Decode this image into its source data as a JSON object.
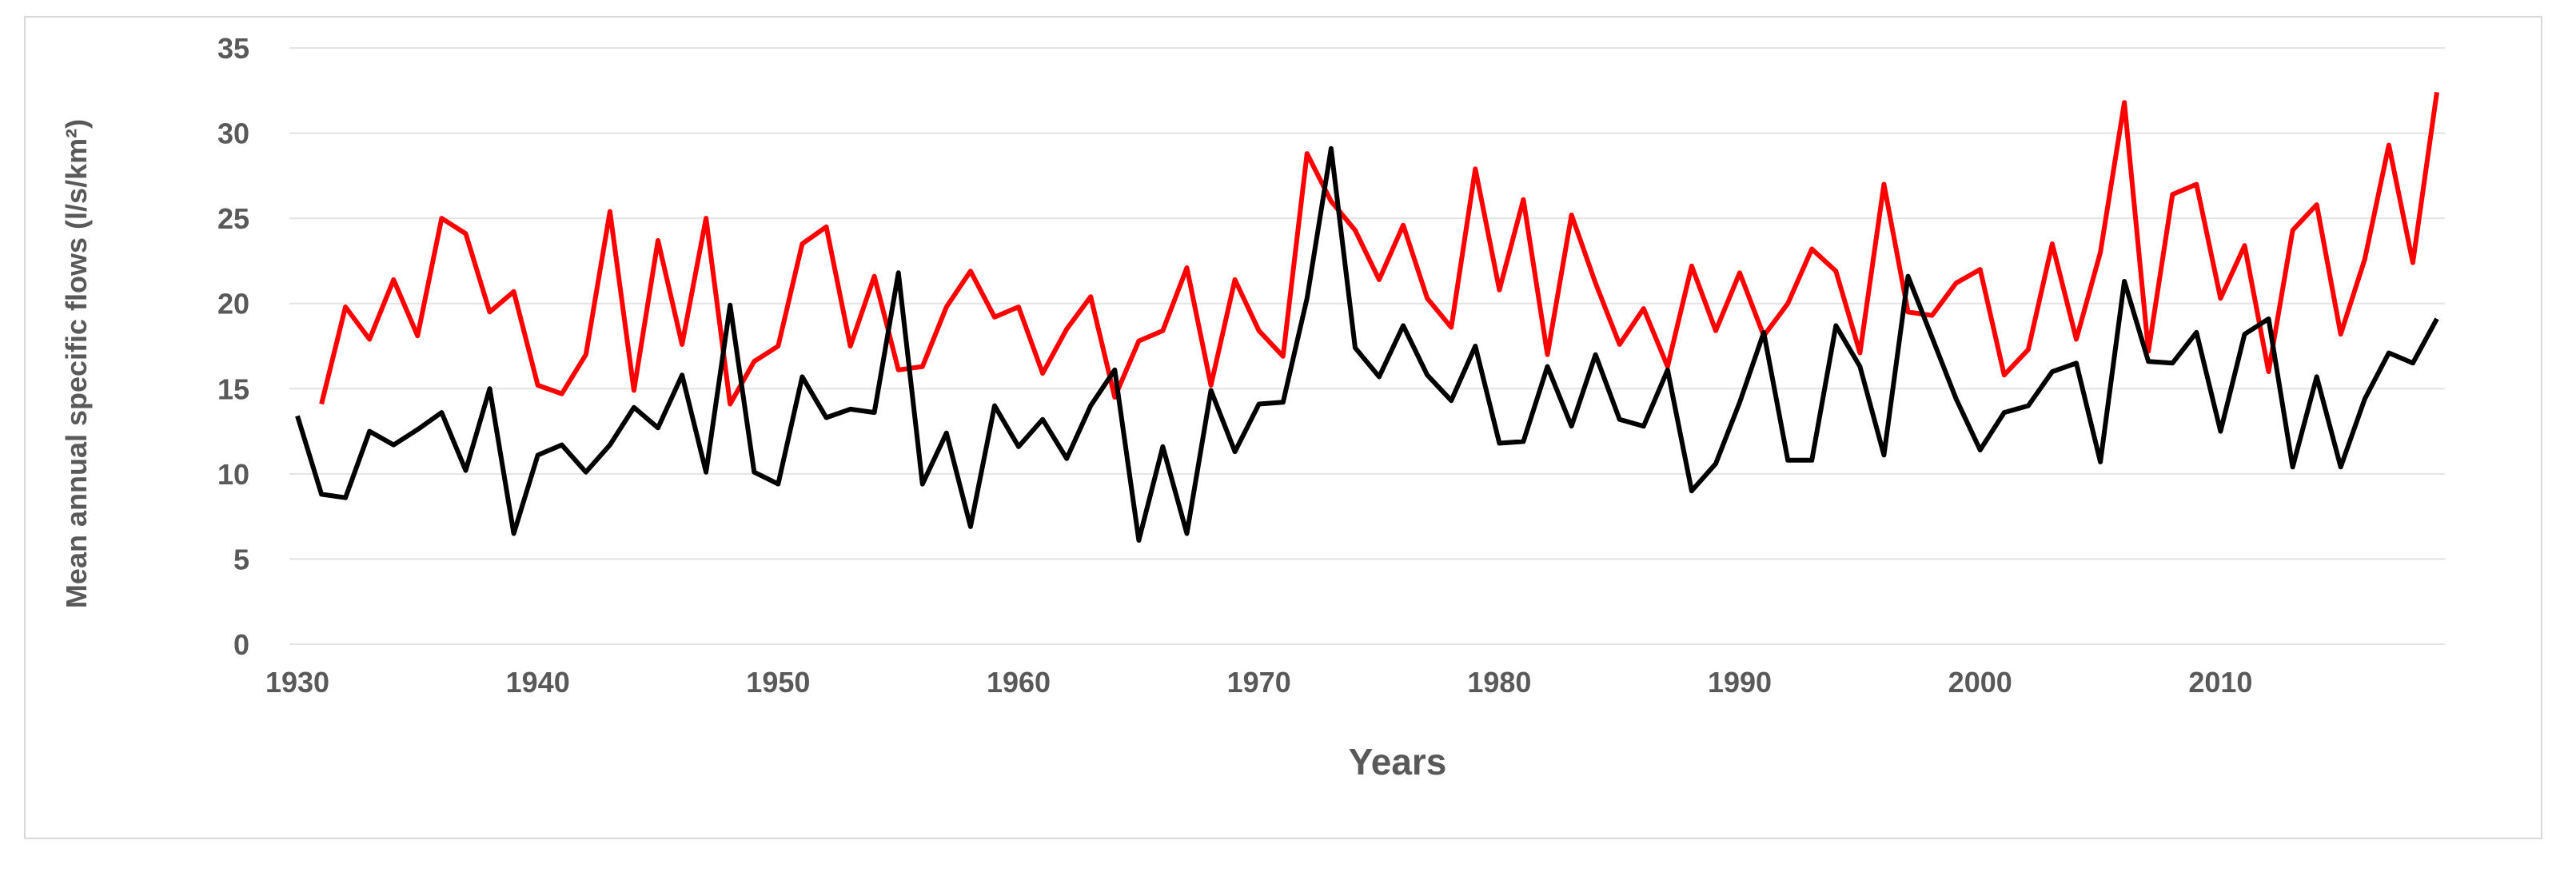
{
  "chart_data": {
    "type": "line",
    "title": "",
    "xlabel": "Years",
    "ylabel": "Mean annual specific flows (l/s/km²)",
    "xlim": [
      1930,
      2019
    ],
    "ylim": [
      0,
      35
    ],
    "x_ticks": [
      "1930",
      "1940",
      "1950",
      "1960",
      "1970",
      "1980",
      "1990",
      "2000",
      "2010"
    ],
    "y_ticks": [
      "0",
      "5",
      "10",
      "15",
      "20",
      "25",
      "30",
      "35"
    ],
    "grid": "horizontal",
    "legend": "none",
    "series": [
      {
        "color": "#ff0000",
        "x": [
          1931,
          1932,
          1933,
          1934,
          1935,
          1936,
          1937,
          1938,
          1939,
          1940,
          1941,
          1942,
          1943,
          1944,
          1945,
          1946,
          1947,
          1948,
          1949,
          1950,
          1951,
          1952,
          1953,
          1954,
          1955,
          1956,
          1957,
          1958,
          1959,
          1960,
          1961,
          1962,
          1963,
          1964,
          1965,
          1966,
          1967,
          1968,
          1969,
          1970,
          1971,
          1972,
          1973,
          1974,
          1975,
          1976,
          1977,
          1978,
          1979,
          1980,
          1981,
          1982,
          1983,
          1984,
          1985,
          1986,
          1987,
          1988,
          1989,
          1990,
          1991,
          1992,
          1993,
          1994,
          1995,
          1996,
          1997,
          1998,
          1999,
          2000,
          2001,
          2002,
          2003,
          2004,
          2005,
          2006,
          2007,
          2008,
          2009,
          2010,
          2011,
          2012,
          2013,
          2014,
          2015,
          2016,
          2017,
          2018,
          2019
        ],
        "values": [
          14.1,
          19.8,
          17.9,
          21.4,
          18.1,
          25.0,
          24.1,
          19.5,
          20.7,
          15.2,
          14.7,
          17.0,
          25.4,
          14.9,
          23.7,
          17.6,
          25.0,
          14.1,
          16.6,
          17.5,
          23.5,
          24.5,
          17.5,
          21.6,
          16.1,
          16.3,
          19.8,
          21.9,
          19.2,
          19.8,
          15.9,
          18.5,
          20.4,
          14.5,
          17.8,
          18.4,
          22.1,
          15.2,
          21.4,
          18.4,
          16.9,
          28.8,
          26.0,
          24.3,
          21.4,
          24.6,
          20.3,
          18.6,
          27.9,
          20.8,
          26.1,
          17.0,
          25.2,
          21.2,
          17.6,
          19.7,
          16.3,
          22.2,
          18.4,
          21.8,
          18.1,
          20.0,
          23.2,
          21.9,
          17.1,
          27.0,
          19.5,
          19.3,
          21.2,
          22.0,
          15.8,
          17.3,
          23.5,
          17.9,
          23.0,
          31.8,
          17.2,
          26.4,
          27.0,
          20.3,
          23.4,
          16.0,
          24.3,
          25.8,
          18.2,
          22.6,
          29.3,
          22.4,
          32.4
        ]
      },
      {
        "color": "#000000",
        "x": [
          1930,
          1931,
          1932,
          1933,
          1934,
          1935,
          1936,
          1937,
          1938,
          1939,
          1940,
          1941,
          1942,
          1943,
          1944,
          1945,
          1946,
          1947,
          1948,
          1949,
          1950,
          1951,
          1952,
          1953,
          1954,
          1955,
          1956,
          1957,
          1958,
          1959,
          1960,
          1961,
          1962,
          1963,
          1964,
          1965,
          1966,
          1967,
          1968,
          1969,
          1970,
          1971,
          1972,
          1973,
          1974,
          1975,
          1976,
          1977,
          1978,
          1979,
          1980,
          1981,
          1982,
          1983,
          1984,
          1985,
          1986,
          1987,
          1988,
          1989,
          1990,
          1991,
          1992,
          1993,
          1994,
          1995,
          1996,
          1997,
          1998,
          1999,
          2000,
          2001,
          2002,
          2003,
          2004,
          2005,
          2006,
          2007,
          2008,
          2009,
          2010,
          2011,
          2012,
          2013,
          2014,
          2015,
          2016,
          2017,
          2018,
          2019
        ],
        "values": [
          13.4,
          8.8,
          8.6,
          12.5,
          11.7,
          12.6,
          13.6,
          10.2,
          15.0,
          6.5,
          11.1,
          11.7,
          10.1,
          11.7,
          13.9,
          12.7,
          15.8,
          10.1,
          19.9,
          10.1,
          9.4,
          15.7,
          13.3,
          13.8,
          13.6,
          21.8,
          9.4,
          12.4,
          6.9,
          14.0,
          11.6,
          13.2,
          10.9,
          14.0,
          16.1,
          6.1,
          11.6,
          6.5,
          14.9,
          11.3,
          14.1,
          14.2,
          20.3,
          29.1,
          17.4,
          15.7,
          18.7,
          15.8,
          14.3,
          17.5,
          11.8,
          11.9,
          16.3,
          12.8,
          17.0,
          13.2,
          12.8,
          16.1,
          9.0,
          10.6,
          14.2,
          18.3,
          10.8,
          10.8,
          18.7,
          16.3,
          11.1,
          21.6,
          18.0,
          14.4,
          11.4,
          13.6,
          14.0,
          16.0,
          16.5,
          10.7,
          21.3,
          16.6,
          16.5,
          18.3,
          12.5,
          18.2,
          19.1,
          10.4,
          15.7,
          10.4,
          14.4,
          17.1,
          16.5,
          19.1
        ]
      }
    ]
  }
}
